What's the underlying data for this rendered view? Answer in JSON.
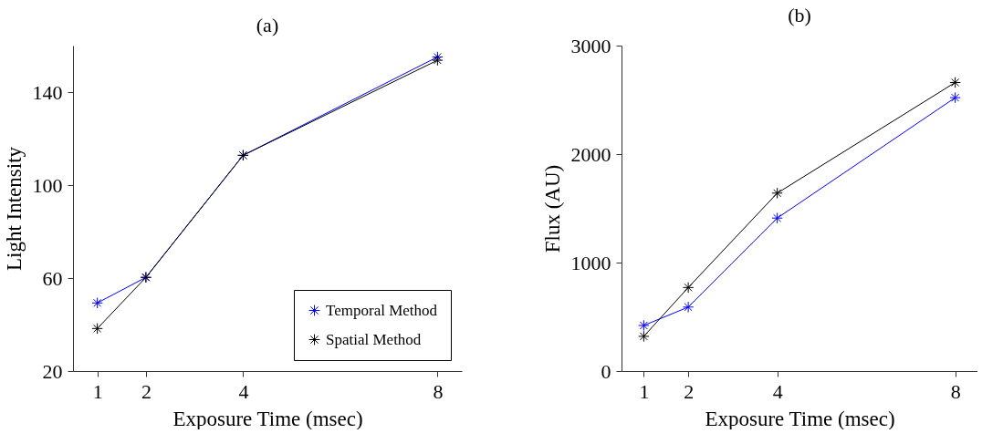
{
  "chart_data": [
    {
      "type": "line",
      "title": "(a)",
      "xlabel": "Exposure Time (msec)",
      "ylabel": "Light Intensity",
      "x": [
        1,
        2,
        4,
        8
      ],
      "xlim": [
        0.5,
        8.5
      ],
      "xticks": [
        1,
        2,
        4,
        8
      ],
      "ylim": [
        20,
        160
      ],
      "yticks": [
        20,
        60,
        100,
        140
      ],
      "grid": false,
      "legend": "bottom right",
      "marker": "cross",
      "line_style": "solid",
      "series": [
        {
          "name": "Temporal Method",
          "color": "#0000ff",
          "values": [
            49.3,
            60.3,
            112.8,
            155.1
          ]
        },
        {
          "name": "Spatial Method",
          "color": "#000000",
          "values": [
            38.3,
            60.3,
            112.8,
            153.7
          ]
        }
      ]
    },
    {
      "type": "line",
      "title": "(b)",
      "xlabel": "Exposure Time (msec)",
      "ylabel": "Flux (AU)",
      "x": [
        1,
        2,
        4,
        8
      ],
      "xlim": [
        0.5,
        8.5
      ],
      "xticks": [
        1,
        2,
        4,
        8
      ],
      "ylim": [
        0,
        3000
      ],
      "yticks": [
        0,
        1000,
        2000,
        3000
      ],
      "grid": false,
      "legend": false,
      "marker": "cross",
      "line_style": "solid",
      "series": [
        {
          "color": "#0000ff",
          "values": [
            420,
            590,
            1410,
            2520
          ]
        },
        {
          "color": "#000000",
          "values": [
            320,
            770,
            1640,
            2660
          ]
        }
      ]
    }
  ]
}
